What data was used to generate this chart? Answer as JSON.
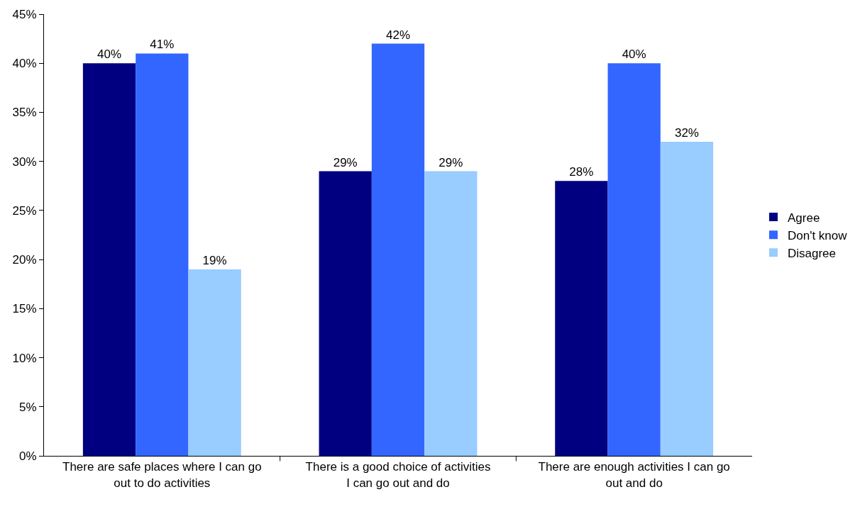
{
  "chart_data": {
    "type": "bar",
    "categories": [
      "There are safe places where I can go out to do activities",
      "There is a good choice of activities I can go out and do",
      "There are enough activities I can go out and do"
    ],
    "series": [
      {
        "name": "Agree",
        "color": "#000080",
        "values": [
          40,
          29,
          28
        ],
        "value_labels": [
          "40%",
          "29%",
          "28%"
        ]
      },
      {
        "name": "Don't know",
        "color": "#3366ff",
        "values": [
          41,
          42,
          40
        ],
        "value_labels": [
          "41%",
          "42%",
          "40%"
        ]
      },
      {
        "name": "Disagree",
        "color": "#99ccff",
        "values": [
          19,
          29,
          32
        ],
        "value_labels": [
          "19%",
          "29%",
          "32%"
        ]
      }
    ],
    "ylim": [
      0,
      45
    ],
    "yticks": [
      {
        "value": 0,
        "label": "0%"
      },
      {
        "value": 5,
        "label": "5%"
      },
      {
        "value": 10,
        "label": "10%"
      },
      {
        "value": 15,
        "label": "15%"
      },
      {
        "value": 20,
        "label": "20%"
      },
      {
        "value": 25,
        "label": "25%"
      },
      {
        "value": 30,
        "label": "30%"
      },
      {
        "value": 35,
        "label": "35%"
      },
      {
        "value": 40,
        "label": "40%"
      },
      {
        "value": 45,
        "label": "45%"
      }
    ],
    "legend": "right"
  }
}
